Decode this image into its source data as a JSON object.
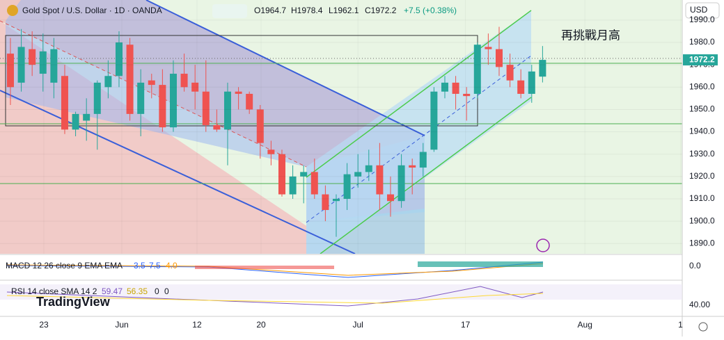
{
  "header": {
    "symbol": "Gold Spot / U.S. Dollar · 1D · OANDA",
    "open": "O1964.7",
    "high": "H1978.4",
    "low": "L1962.1",
    "close": "C1972.2",
    "change": "+7.5 (+0.38%)"
  },
  "currency": "USD",
  "price_label": "1972.2",
  "annotation": "再挑戰月高",
  "logo": "TradingView",
  "macd": {
    "label": "MACD 12 26 close 9 EMA EMA",
    "values": [
      "3.5",
      "7.5",
      "4.0"
    ],
    "axis": "0.0"
  },
  "rsi": {
    "label": "RSI 14 close SMA 14 2",
    "values": [
      "59.47",
      "56.35",
      "0",
      "0"
    ],
    "axis": "40.00"
  },
  "chart_data": {
    "type": "candlestick",
    "up_color": "#26a69a",
    "down_color": "#ef5350",
    "open": [
      1975,
      1962,
      1977,
      1966,
      1962,
      1965,
      1941,
      1945,
      1948,
      1960,
      1965,
      1979,
      1948,
      1963,
      1961,
      1942,
      1966,
      1962,
      1958,
      1943,
      1941,
      1958,
      1957,
      1950,
      1932,
      1930,
      1912,
      1920,
      1922,
      1912,
      1909,
      1910,
      1920,
      1922,
      1925,
      1912,
      1909,
      1925,
      1924,
      1932,
      1958,
      1962,
      1957,
      1957,
      1978,
      1977,
      1970,
      1963,
      1957,
      1964.7
    ],
    "high": [
      1982,
      1986,
      1985,
      1984,
      1982,
      1970,
      1949,
      1955,
      1963,
      1972,
      1985,
      1982,
      1968,
      1966,
      1968,
      1972,
      1975,
      1970,
      1972,
      1950,
      1962,
      1960,
      1958,
      1952,
      1936,
      1932,
      1925,
      1925,
      1928,
      1916,
      1912,
      1926,
      1930,
      1932,
      1935,
      1920,
      1930,
      1928,
      1935,
      1960,
      1965,
      1965,
      1960,
      1980,
      1984,
      1987,
      1975,
      1968,
      1970,
      1978.4
    ],
    "low": [
      1952,
      1958,
      1965,
      1958,
      1955,
      1939,
      1938,
      1936,
      1932,
      1955,
      1960,
      1945,
      1938,
      1955,
      1940,
      1940,
      1958,
      1950,
      1940,
      1940,
      1925,
      1950,
      1948,
      1928,
      1925,
      1911,
      1910,
      1908,
      1910,
      1900,
      1893,
      1905,
      1915,
      1918,
      1905,
      1902,
      1906,
      1912,
      1920,
      1931,
      1955,
      1950,
      1945,
      1955,
      1970,
      1965,
      1960,
      1955,
      1953,
      1962.1
    ],
    "close": [
      1960,
      1978,
      1970,
      1976,
      1977,
      1941,
      1948,
      1948,
      1962,
      1965,
      1980,
      1948,
      1962,
      1961,
      1942,
      1966,
      1960,
      1958,
      1943,
      1941,
      1958,
      1957,
      1950,
      1935,
      1930,
      1912,
      1920,
      1922,
      1912,
      1905,
      1910,
      1921,
      1922,
      1925,
      1912,
      1909,
      1925,
      1924,
      1931,
      1958,
      1962,
      1957,
      1956,
      1979,
      1977,
      1969,
      1963,
      1957,
      1967,
      1972.2
    ],
    "ylim": [
      1885.4,
      1999
    ],
    "yticks": [
      {
        "value": 1890,
        "label": "1890.0"
      },
      {
        "value": 1900,
        "label": "1900.0"
      },
      {
        "value": 1910,
        "label": "1910.0"
      },
      {
        "value": 1920,
        "label": "1920.0"
      },
      {
        "value": 1930,
        "label": "1930.0"
      },
      {
        "value": 1940,
        "label": "1940.0"
      },
      {
        "value": 1950,
        "label": "1950.0"
      },
      {
        "value": 1960,
        "label": "1960.0"
      },
      {
        "value": 1970,
        "label": "1970.0"
      },
      {
        "value": 1980,
        "label": "1980.0"
      },
      {
        "value": 1990,
        "label": "1990.0"
      }
    ],
    "xlim": [
      -0.96,
      61.86
    ],
    "xticks": [
      {
        "value": 3.08,
        "label": "23"
      },
      {
        "value": 10.26,
        "label": "Jun"
      },
      {
        "value": 17.18,
        "label": "12"
      },
      {
        "value": 23.08,
        "label": "20"
      },
      {
        "value": 32,
        "label": "Jul"
      },
      {
        "value": 41.9,
        "label": "17"
      },
      {
        "value": 52.9,
        "label": "Aug"
      },
      {
        "value": 61.7,
        "label": "1"
      }
    ]
  }
}
